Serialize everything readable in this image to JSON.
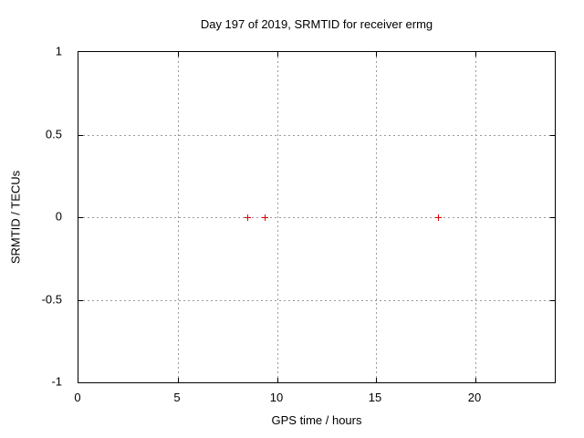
{
  "chart_data": {
    "type": "scatter",
    "title": "Day 197 of 2019, SRMTID for receiver ermg",
    "xlabel": "GPS time / hours",
    "ylabel": "SRMTID / TECUs",
    "xlim": [
      0,
      24
    ],
    "ylim": [
      -1,
      1
    ],
    "x_ticks": {
      "values": [
        0,
        5,
        10,
        15,
        20
      ],
      "labels": [
        "0",
        "5",
        "10",
        "15",
        "20"
      ]
    },
    "y_ticks": {
      "values": [
        1,
        0.5,
        0,
        -0.5,
        -1
      ],
      "labels": [
        "1",
        "0.5",
        "0",
        "-0.5",
        "-1"
      ]
    },
    "grid": "dotted",
    "legend_position": "none",
    "series": [
      {
        "name": "SRMTID",
        "marker": "plus",
        "color": "#e00000",
        "points": [
          {
            "x": 8.5,
            "y": 0
          },
          {
            "x": 9.4,
            "y": 0
          },
          {
            "x": 18.1,
            "y": 0
          }
        ]
      }
    ]
  },
  "colors": {
    "background": "#ffffff",
    "border": "#000000",
    "grid": "#9a9a9a",
    "text": "#000000",
    "marker": "#e00000"
  }
}
